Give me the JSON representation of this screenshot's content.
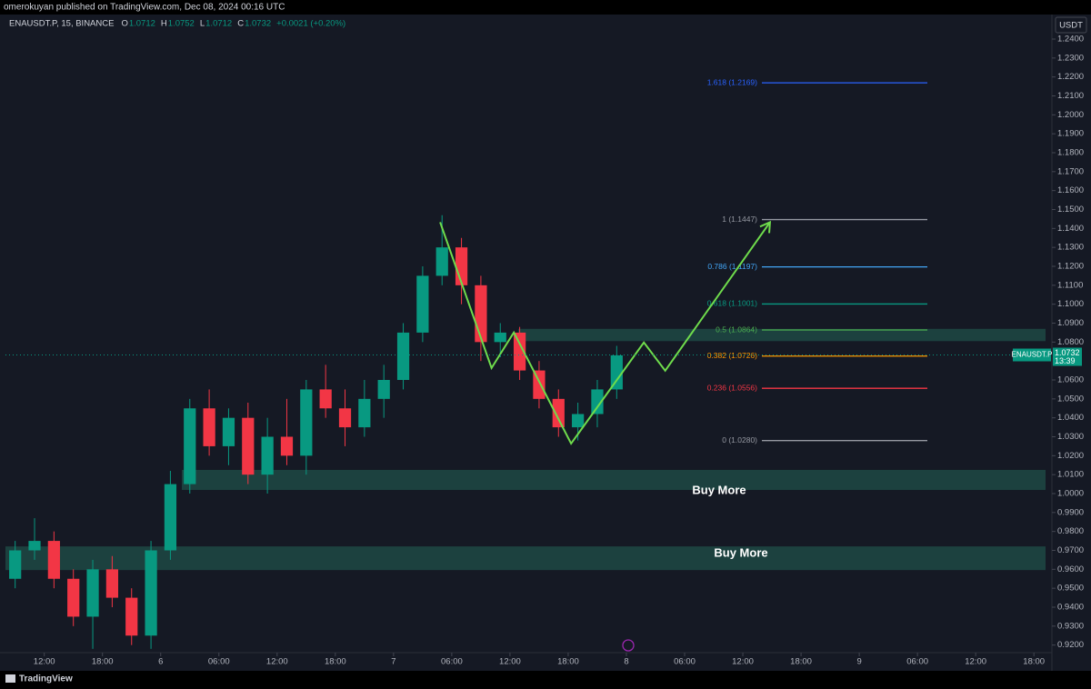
{
  "publisher_line": "omerokuyan published on TradingView.com, Dec 08, 2024 00:16 UTC",
  "legend": {
    "symbol": "ENAUSDT.P, 15, BINANCE",
    "ohlc": [
      {
        "key": "O",
        "value": 1.0712
      },
      {
        "key": "H",
        "value": 1.0752
      },
      {
        "key": "L",
        "value": 1.0712
      },
      {
        "key": "C",
        "value": 1.0732
      }
    ],
    "change": "+0.0021 (+0.20%)"
  },
  "brand": "TradingView",
  "chart_data": {
    "type": "candlestick",
    "currency": "USDT",
    "up_color": "#089981",
    "down_color": "#f23645",
    "xlim": [
      8,
      115.2
    ],
    "xticks": [
      {
        "value": 12,
        "label": "12:00"
      },
      {
        "value": 18,
        "label": "18:00"
      },
      {
        "value": 24,
        "label": "6"
      },
      {
        "value": 30,
        "label": "06:00"
      },
      {
        "value": 36,
        "label": "12:00"
      },
      {
        "value": 42,
        "label": "18:00"
      },
      {
        "value": 48,
        "label": "7"
      },
      {
        "value": 54,
        "label": "06:00"
      },
      {
        "value": 60,
        "label": "12:00"
      },
      {
        "value": 66,
        "label": "18:00"
      },
      {
        "value": 72,
        "label": "8"
      },
      {
        "value": 78,
        "label": "06:00"
      },
      {
        "value": 84,
        "label": "12:00"
      },
      {
        "value": 90,
        "label": "18:00"
      },
      {
        "value": 96,
        "label": "9"
      },
      {
        "value": 102,
        "label": "06:00"
      },
      {
        "value": 108,
        "label": "12:00"
      },
      {
        "value": 114,
        "label": "18:00"
      }
    ],
    "ylim": [
      0.916,
      1.252
    ],
    "yticks": [
      {
        "value": 1.24,
        "label": "1.2400"
      },
      {
        "value": 1.23,
        "label": "1.2300"
      },
      {
        "value": 1.22,
        "label": "1.2200"
      },
      {
        "value": 1.21,
        "label": "1.2100"
      },
      {
        "value": 1.2,
        "label": "1.2000"
      },
      {
        "value": 1.19,
        "label": "1.1900"
      },
      {
        "value": 1.18,
        "label": "1.1800"
      },
      {
        "value": 1.17,
        "label": "1.1700"
      },
      {
        "value": 1.16,
        "label": "1.1600"
      },
      {
        "value": 1.15,
        "label": "1.1500"
      },
      {
        "value": 1.14,
        "label": "1.1400"
      },
      {
        "value": 1.13,
        "label": "1.1300"
      },
      {
        "value": 1.12,
        "label": "1.1200"
      },
      {
        "value": 1.11,
        "label": "1.1100"
      },
      {
        "value": 1.1,
        "label": "1.1000"
      },
      {
        "value": 1.09,
        "label": "1.0900"
      },
      {
        "value": 1.08,
        "label": "1.0800"
      },
      {
        "value": 1.06,
        "label": "1.0600"
      },
      {
        "value": 1.05,
        "label": "1.0500"
      },
      {
        "value": 1.04,
        "label": "1.0400"
      },
      {
        "value": 1.03,
        "label": "1.0300"
      },
      {
        "value": 1.02,
        "label": "1.0200"
      },
      {
        "value": 1.01,
        "label": "1.0100"
      },
      {
        "value": 1.0,
        "label": "1.0000"
      },
      {
        "value": 0.99,
        "label": "0.9900"
      },
      {
        "value": 0.98,
        "label": "0.9800"
      },
      {
        "value": 0.97,
        "label": "0.9700"
      },
      {
        "value": 0.96,
        "label": "0.9600"
      },
      {
        "value": 0.95,
        "label": "0.9500"
      },
      {
        "value": 0.94,
        "label": "0.9400"
      },
      {
        "value": 0.93,
        "label": "0.9300"
      },
      {
        "value": 0.92,
        "label": "0.9200"
      }
    ],
    "x": [
      9,
      11,
      13,
      15,
      17,
      19,
      21,
      23,
      25,
      27,
      29,
      31,
      33,
      35,
      37,
      39,
      41,
      43,
      45,
      47,
      49,
      51,
      53,
      55,
      57,
      59,
      61,
      63,
      65,
      67,
      69,
      71
    ],
    "open": [
      0.955,
      0.97,
      0.975,
      0.955,
      0.935,
      0.96,
      0.945,
      0.925,
      0.97,
      1.005,
      1.045,
      1.025,
      1.04,
      1.01,
      1.03,
      1.02,
      1.055,
      1.045,
      1.035,
      1.05,
      1.06,
      1.085,
      1.115,
      1.13,
      1.11,
      1.08,
      1.085,
      1.065,
      1.05,
      1.035,
      1.042,
      1.055
    ],
    "high": [
      0.975,
      0.987,
      0.98,
      0.96,
      0.965,
      0.967,
      0.95,
      0.975,
      1.012,
      1.05,
      1.055,
      1.045,
      1.048,
      1.04,
      1.05,
      1.06,
      1.068,
      1.055,
      1.06,
      1.068,
      1.09,
      1.12,
      1.147,
      1.135,
      1.115,
      1.09,
      1.088,
      1.07,
      1.055,
      1.048,
      1.06,
      1.078
    ],
    "low": [
      0.95,
      0.965,
      0.95,
      0.93,
      0.918,
      0.94,
      0.92,
      0.918,
      0.965,
      1.0,
      1.02,
      1.015,
      1.005,
      1.0,
      1.015,
      1.01,
      1.04,
      1.025,
      1.03,
      1.04,
      1.055,
      1.08,
      1.11,
      1.1,
      1.07,
      1.072,
      1.06,
      1.045,
      1.03,
      1.028,
      1.035,
      1.05
    ],
    "close": [
      0.97,
      0.975,
      0.955,
      0.935,
      0.96,
      0.945,
      0.925,
      0.97,
      1.005,
      1.045,
      1.025,
      1.04,
      1.01,
      1.03,
      1.02,
      1.055,
      1.045,
      1.035,
      1.05,
      1.06,
      1.085,
      1.115,
      1.13,
      1.11,
      1.08,
      1.085,
      1.065,
      1.05,
      1.035,
      1.042,
      1.055,
      1.073
    ],
    "zones": [
      {
        "top": 1.087,
        "bottom": 1.0805
      },
      {
        "top": 1.0125,
        "bottom": 1.0019,
        "label": "Buy More"
      },
      {
        "top": 0.9721,
        "bottom": 0.9596,
        "label": "Buy More"
      }
    ],
    "zone_color": "#1f4f48",
    "fib_levels": [
      {
        "label": "1.618 (1.2169)",
        "value": 1.2169,
        "color": "#2962ff"
      },
      {
        "label": "1 (1.1447)",
        "value": 1.1447,
        "color": "#9598a1"
      },
      {
        "label": "0.786 (1.1197)",
        "value": 1.1197,
        "color": "#42a5f5"
      },
      {
        "label": "0.618 (1.1001)",
        "value": 1.1001,
        "color": "#089981"
      },
      {
        "label": "0.5 (1.0864)",
        "value": 1.0864,
        "color": "#4caf50"
      },
      {
        "label": "0.382 (1.0726)",
        "value": 1.0726,
        "color": "#ff9800"
      },
      {
        "label": "0.236 (1.0556)",
        "value": 1.0556,
        "color": "#f23645"
      },
      {
        "label": "0 (1.0280)",
        "value": 1.028,
        "color": "#9598a1"
      }
    ],
    "projection": {
      "x": [
        52.8,
        58.1,
        60.4,
        66.3,
        73.8,
        76.0,
        86.8
      ],
      "y": [
        1.1433,
        1.0663,
        1.0851,
        1.0264,
        1.0798,
        1.0649,
        1.1433
      ],
      "color": "#6fdc4c"
    },
    "last_price": {
      "symbol": "ENAUSDT.P",
      "value": 1.0732,
      "countdown": "13:39",
      "color": "#089981"
    }
  }
}
